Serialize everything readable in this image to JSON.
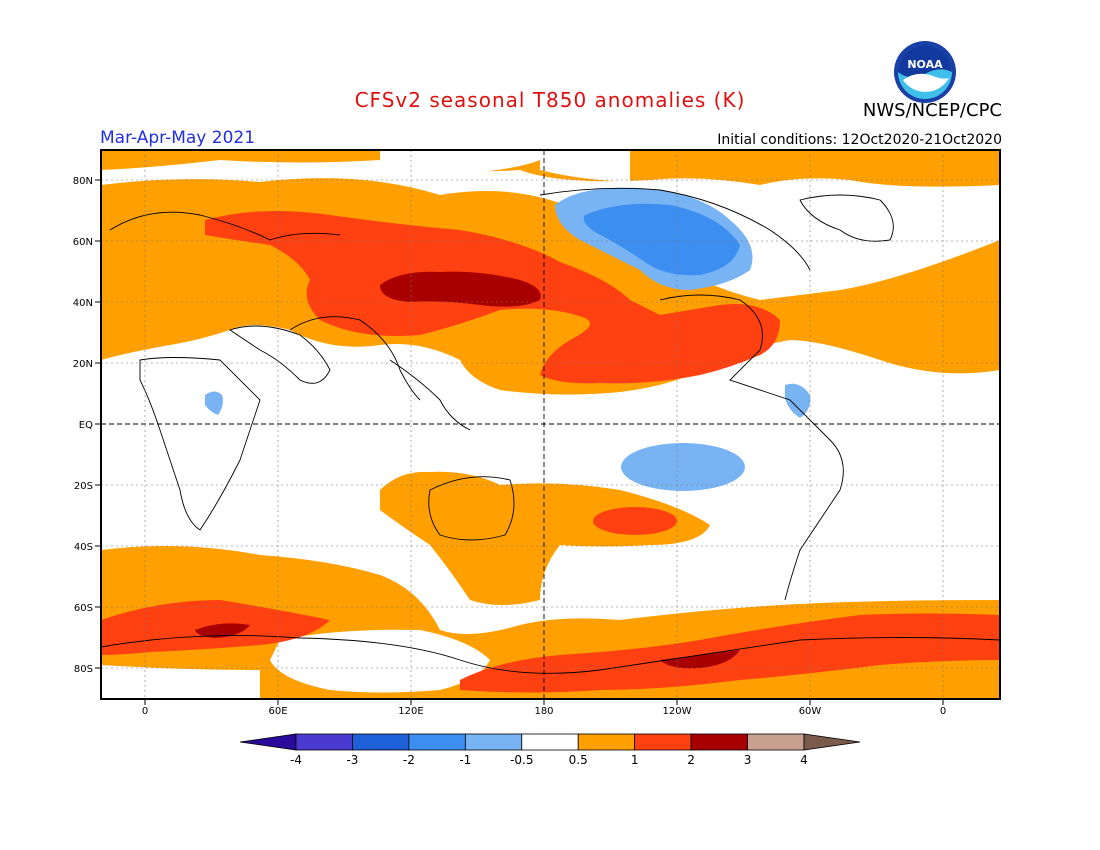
{
  "header": {
    "title": "CFSv2 seasonal T850 anomalies (K)",
    "agency": "NWS/NCEP/CPC",
    "season": "Mar-Apr-May 2021",
    "initial_conditions": "Initial conditions: 12Oct2020-21Oct2020",
    "logo_text": "NOAA"
  },
  "axes": {
    "lat_labels": [
      "80N",
      "60N",
      "40N",
      "20N",
      "EQ",
      "20S",
      "40S",
      "60S",
      "80S"
    ],
    "lon_labels": [
      "0",
      "60E",
      "120E",
      "180",
      "120W",
      "60W",
      "0"
    ]
  },
  "colorbar": {
    "labels": [
      "-4",
      "-3",
      "-2",
      "-1",
      "-0.5",
      "0.5",
      "1",
      "2",
      "3",
      "4"
    ],
    "colors": [
      "#2a0a9a",
      "#4b3ad0",
      "#1e60d8",
      "#3c8ff0",
      "#78b4f4",
      "#ffffff",
      "#ffa000",
      "#ff4010",
      "#a80000",
      "#c8a090",
      "#7a5a4a"
    ]
  },
  "colors": {
    "title": "#e01010",
    "season": "#2030e0",
    "ocean_bg": "#ffffff"
  }
}
